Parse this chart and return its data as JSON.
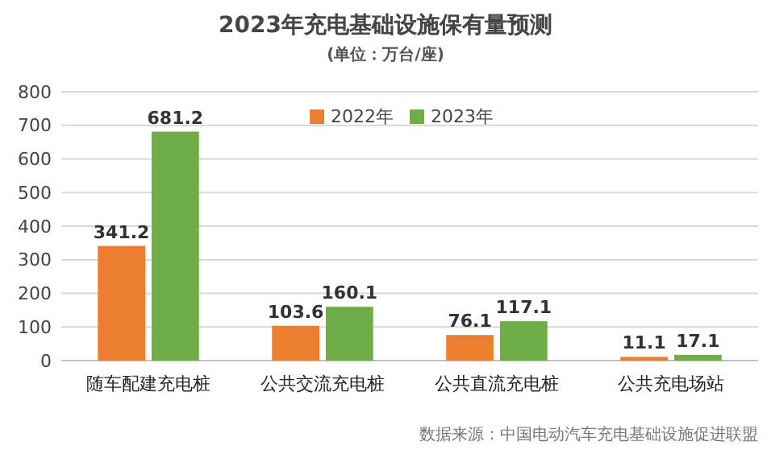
{
  "chart_data": {
    "type": "bar",
    "title": "2023年充电基础设施保有量预测",
    "subtitle": "(单位：万台/座)",
    "categories": [
      "随车配建充电桩",
      "公共交流充电桩",
      "公共直流充电桩",
      "公共充电场站"
    ],
    "series": [
      {
        "name": "2022年",
        "color": "#ed7d31",
        "values": [
          341.2,
          103.6,
          76.1,
          11.1
        ]
      },
      {
        "name": "2023年",
        "color": "#70ad47",
        "values": [
          681.2,
          160.1,
          117.1,
          17.1
        ]
      }
    ],
    "ylim": [
      0,
      800
    ],
    "yticks": [
      0,
      100,
      200,
      300,
      400,
      500,
      600,
      700,
      800
    ],
    "grid": "y",
    "legend": "top",
    "data_labels": true,
    "annotations": [
      "数据来源：中国电动汽车充电基础设施促进联盟"
    ]
  }
}
